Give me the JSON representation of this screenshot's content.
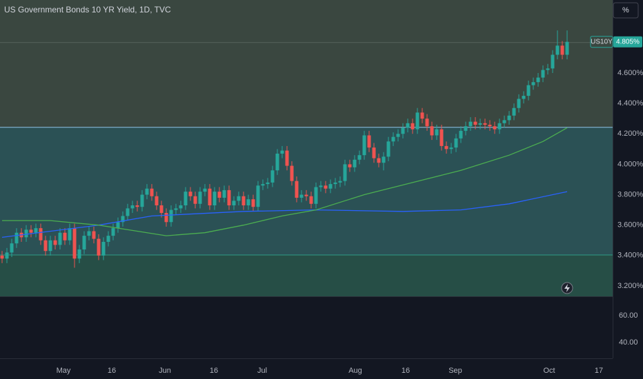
{
  "chart_data": {
    "type": "candlestick",
    "title": "US Government Bonds 10 YR Yield, 1D, TVC",
    "unit": "%",
    "up_color": "#26a69a",
    "down_color": "#ef5350",
    "x": [
      0,
      1,
      2,
      3,
      4,
      5,
      6,
      7,
      8,
      9,
      10,
      11,
      12,
      13,
      14,
      15,
      16,
      17,
      18,
      19,
      20,
      21,
      22,
      23,
      24,
      25,
      26,
      27,
      28,
      29,
      30,
      31,
      32,
      33,
      34,
      35,
      36,
      37,
      38,
      39,
      40,
      41,
      42,
      43,
      44,
      45,
      46,
      47,
      48,
      49,
      50,
      51,
      52,
      53,
      54,
      55,
      56,
      57,
      58,
      59,
      60,
      61,
      62,
      63,
      64,
      65,
      66,
      67,
      68,
      69,
      70,
      71,
      72,
      73,
      74,
      75,
      76,
      77,
      78,
      79,
      80,
      81,
      82,
      83,
      84,
      85,
      86,
      87,
      88,
      89,
      90,
      91,
      92,
      93,
      94,
      95,
      96,
      97,
      98,
      99,
      100,
      101,
      102,
      103,
      104,
      105,
      106,
      107,
      108,
      109,
      110,
      111,
      112,
      113,
      114,
      115,
      116,
      117
    ],
    "open": [
      3.4,
      3.38,
      3.42,
      3.48,
      3.55,
      3.52,
      3.57,
      3.55,
      3.58,
      3.5,
      3.43,
      3.5,
      3.47,
      3.55,
      3.5,
      3.58,
      3.38,
      3.44,
      3.53,
      3.56,
      3.51,
      3.4,
      3.49,
      3.53,
      3.58,
      3.62,
      3.66,
      3.71,
      3.73,
      3.72,
      3.8,
      3.84,
      3.79,
      3.73,
      3.68,
      3.62,
      3.7,
      3.71,
      3.73,
      3.82,
      3.79,
      3.74,
      3.82,
      3.84,
      3.73,
      3.82,
      3.78,
      3.83,
      3.73,
      3.76,
      3.79,
      3.73,
      3.77,
      3.72,
      3.86,
      3.87,
      3.88,
      3.96,
      4.07,
      4.09,
      3.99,
      3.89,
      3.78,
      3.8,
      3.79,
      3.74,
      3.85,
      3.86,
      3.84,
      3.87,
      3.88,
      3.89,
      4.0,
      3.98,
      4.03,
      4.06,
      4.19,
      4.11,
      4.04,
      4.01,
      4.05,
      4.15,
      4.18,
      4.2,
      4.24,
      4.27,
      4.23,
      4.34,
      4.3,
      4.25,
      4.19,
      4.23,
      4.12,
      4.1,
      4.11,
      4.17,
      4.22,
      4.25,
      4.28,
      4.26,
      4.27,
      4.26,
      4.25,
      4.23,
      4.27,
      4.29,
      4.32,
      4.37,
      4.43,
      4.45,
      4.52,
      4.54,
      4.57,
      4.62,
      4.63,
      4.72,
      4.78,
      4.72
    ],
    "high": [
      3.43,
      3.45,
      3.51,
      3.58,
      3.58,
      3.6,
      3.6,
      3.61,
      3.61,
      3.53,
      3.53,
      3.53,
      3.58,
      3.58,
      3.61,
      3.61,
      3.47,
      3.56,
      3.59,
      3.59,
      3.54,
      3.52,
      3.56,
      3.61,
      3.65,
      3.69,
      3.74,
      3.76,
      3.76,
      3.83,
      3.87,
      3.87,
      3.82,
      3.76,
      3.71,
      3.73,
      3.74,
      3.76,
      3.85,
      3.85,
      3.82,
      3.85,
      3.87,
      3.87,
      3.85,
      3.85,
      3.86,
      3.86,
      3.79,
      3.82,
      3.82,
      3.8,
      3.8,
      3.89,
      3.9,
      3.91,
      3.99,
      4.1,
      4.12,
      4.12,
      4.02,
      3.92,
      3.83,
      3.83,
      3.82,
      3.88,
      3.89,
      3.89,
      3.9,
      3.91,
      3.92,
      4.03,
      4.03,
      4.06,
      4.09,
      4.22,
      4.22,
      4.14,
      4.07,
      4.08,
      4.18,
      4.21,
      4.23,
      4.27,
      4.3,
      4.3,
      4.37,
      4.37,
      4.33,
      4.28,
      4.26,
      4.26,
      4.15,
      4.14,
      4.2,
      4.25,
      4.28,
      4.31,
      4.31,
      4.3,
      4.3,
      4.29,
      4.28,
      4.3,
      4.32,
      4.35,
      4.4,
      4.46,
      4.48,
      4.55,
      4.57,
      4.6,
      4.65,
      4.66,
      4.75,
      4.88,
      4.81,
      4.88
    ],
    "low": [
      3.35,
      3.35,
      3.39,
      3.45,
      3.49,
      3.49,
      3.52,
      3.52,
      3.47,
      3.4,
      3.4,
      3.44,
      3.44,
      3.47,
      3.47,
      3.32,
      3.35,
      3.41,
      3.5,
      3.48,
      3.37,
      3.37,
      3.46,
      3.5,
      3.55,
      3.59,
      3.63,
      3.68,
      3.69,
      3.69,
      3.77,
      3.76,
      3.7,
      3.65,
      3.59,
      3.59,
      3.67,
      3.68,
      3.7,
      3.76,
      3.71,
      3.71,
      3.79,
      3.7,
      3.7,
      3.75,
      3.75,
      3.7,
      3.7,
      3.73,
      3.7,
      3.7,
      3.69,
      3.69,
      3.83,
      3.84,
      3.85,
      3.93,
      4.04,
      3.96,
      3.86,
      3.75,
      3.75,
      3.76,
      3.71,
      3.71,
      3.82,
      3.81,
      3.81,
      3.84,
      3.85,
      3.86,
      3.95,
      3.95,
      4.0,
      4.03,
      4.08,
      4.01,
      3.98,
      3.96,
      4.02,
      4.12,
      4.15,
      4.17,
      4.21,
      4.2,
      4.2,
      4.27,
      4.22,
      4.16,
      4.16,
      4.09,
      4.07,
      4.07,
      4.08,
      4.14,
      4.19,
      4.22,
      4.23,
      4.23,
      4.23,
      4.22,
      4.2,
      4.2,
      4.24,
      4.26,
      4.29,
      4.34,
      4.4,
      4.42,
      4.49,
      4.51,
      4.54,
      4.59,
      4.6,
      4.69,
      4.69,
      4.69
    ],
    "close": [
      3.38,
      3.42,
      3.48,
      3.55,
      3.52,
      3.57,
      3.55,
      3.58,
      3.5,
      3.43,
      3.5,
      3.47,
      3.55,
      3.5,
      3.58,
      3.38,
      3.44,
      3.53,
      3.56,
      3.51,
      3.4,
      3.49,
      3.53,
      3.58,
      3.62,
      3.66,
      3.71,
      3.73,
      3.72,
      3.8,
      3.84,
      3.79,
      3.73,
      3.68,
      3.62,
      3.7,
      3.71,
      3.73,
      3.82,
      3.79,
      3.74,
      3.82,
      3.84,
      3.73,
      3.82,
      3.78,
      3.83,
      3.73,
      3.76,
      3.79,
      3.73,
      3.77,
      3.72,
      3.86,
      3.87,
      3.88,
      3.96,
      4.07,
      4.09,
      3.99,
      3.89,
      3.78,
      3.8,
      3.79,
      3.74,
      3.85,
      3.86,
      3.84,
      3.87,
      3.88,
      3.89,
      4.0,
      3.98,
      4.03,
      4.06,
      4.19,
      4.11,
      4.04,
      4.01,
      4.05,
      4.15,
      4.18,
      4.2,
      4.24,
      4.27,
      4.23,
      4.34,
      4.3,
      4.25,
      4.19,
      4.23,
      4.12,
      4.1,
      4.11,
      4.17,
      4.22,
      4.25,
      4.28,
      4.26,
      4.27,
      4.26,
      4.25,
      4.23,
      4.27,
      4.29,
      4.32,
      4.37,
      4.43,
      4.45,
      4.52,
      4.54,
      4.57,
      4.62,
      4.63,
      4.72,
      4.78,
      4.72,
      4.805
    ],
    "lines": [
      {
        "color": "#2962ff",
        "x": [
          0,
          20,
          31,
          50,
          65,
          83,
          95,
          105,
          117
        ],
        "values": [
          3.52,
          3.6,
          3.66,
          3.69,
          3.7,
          3.69,
          3.7,
          3.74,
          3.82
        ]
      },
      {
        "color": "#4caf50",
        "x": [
          0,
          10,
          20,
          28,
          34,
          42,
          50,
          58,
          65,
          75,
          85,
          95,
          105,
          112,
          117
        ],
        "values": [
          3.63,
          3.63,
          3.6,
          3.56,
          3.53,
          3.55,
          3.6,
          3.66,
          3.7,
          3.8,
          3.88,
          3.96,
          4.06,
          4.15,
          4.24
        ]
      }
    ],
    "bands": [
      {
        "from": 4.243,
        "to": null,
        "color": "#3a4740"
      },
      {
        "from": 3.404,
        "to": 4.243,
        "color": "#2b5155"
      },
      {
        "from": null,
        "to": 3.404,
        "color": "#264e46"
      }
    ],
    "hlines": [
      {
        "value": 4.8,
        "color": "#56635c"
      },
      {
        "value": 4.243,
        "color": "#8fc3e8"
      },
      {
        "value": 3.404,
        "color": "#2f9c86"
      }
    ],
    "last": {
      "symbol": "US10Y",
      "value": 4.805,
      "label": "4.805%",
      "color": "#26a69a"
    },
    "xlim": [
      -0.43,
      126.43
    ],
    "ylim": [
      3.132,
      5.08
    ],
    "yticks": [
      {
        "value": 3.2,
        "label": "3.200%"
      },
      {
        "value": 3.4,
        "label": "3.400%"
      },
      {
        "value": 3.6,
        "label": "3.600%"
      },
      {
        "value": 3.8,
        "label": "3.800%"
      },
      {
        "value": 4.0,
        "label": "4.000%"
      },
      {
        "value": 4.2,
        "label": "4.200%"
      },
      {
        "value": 4.4,
        "label": "4.400%"
      },
      {
        "value": 4.6,
        "label": "4.600%"
      }
    ],
    "xticks": [
      {
        "value": 12.71,
        "label": "May"
      },
      {
        "value": 22.71,
        "label": "16"
      },
      {
        "value": 33.71,
        "label": "Jun"
      },
      {
        "value": 43.86,
        "label": "16"
      },
      {
        "value": 53.86,
        "label": "Jul"
      },
      {
        "value": 73.14,
        "label": "Aug"
      },
      {
        "value": 83.57,
        "label": "16"
      },
      {
        "value": 93.86,
        "label": "Sep"
      },
      {
        "value": 113.29,
        "label": "Oct"
      },
      {
        "value": 123.57,
        "label": "17"
      }
    ],
    "pane2": {
      "ylim": [
        28.2,
        74.4
      ],
      "yticks": [
        {
          "value": 60,
          "label": "60.00"
        },
        {
          "value": 40,
          "label": "40.00"
        }
      ]
    }
  }
}
